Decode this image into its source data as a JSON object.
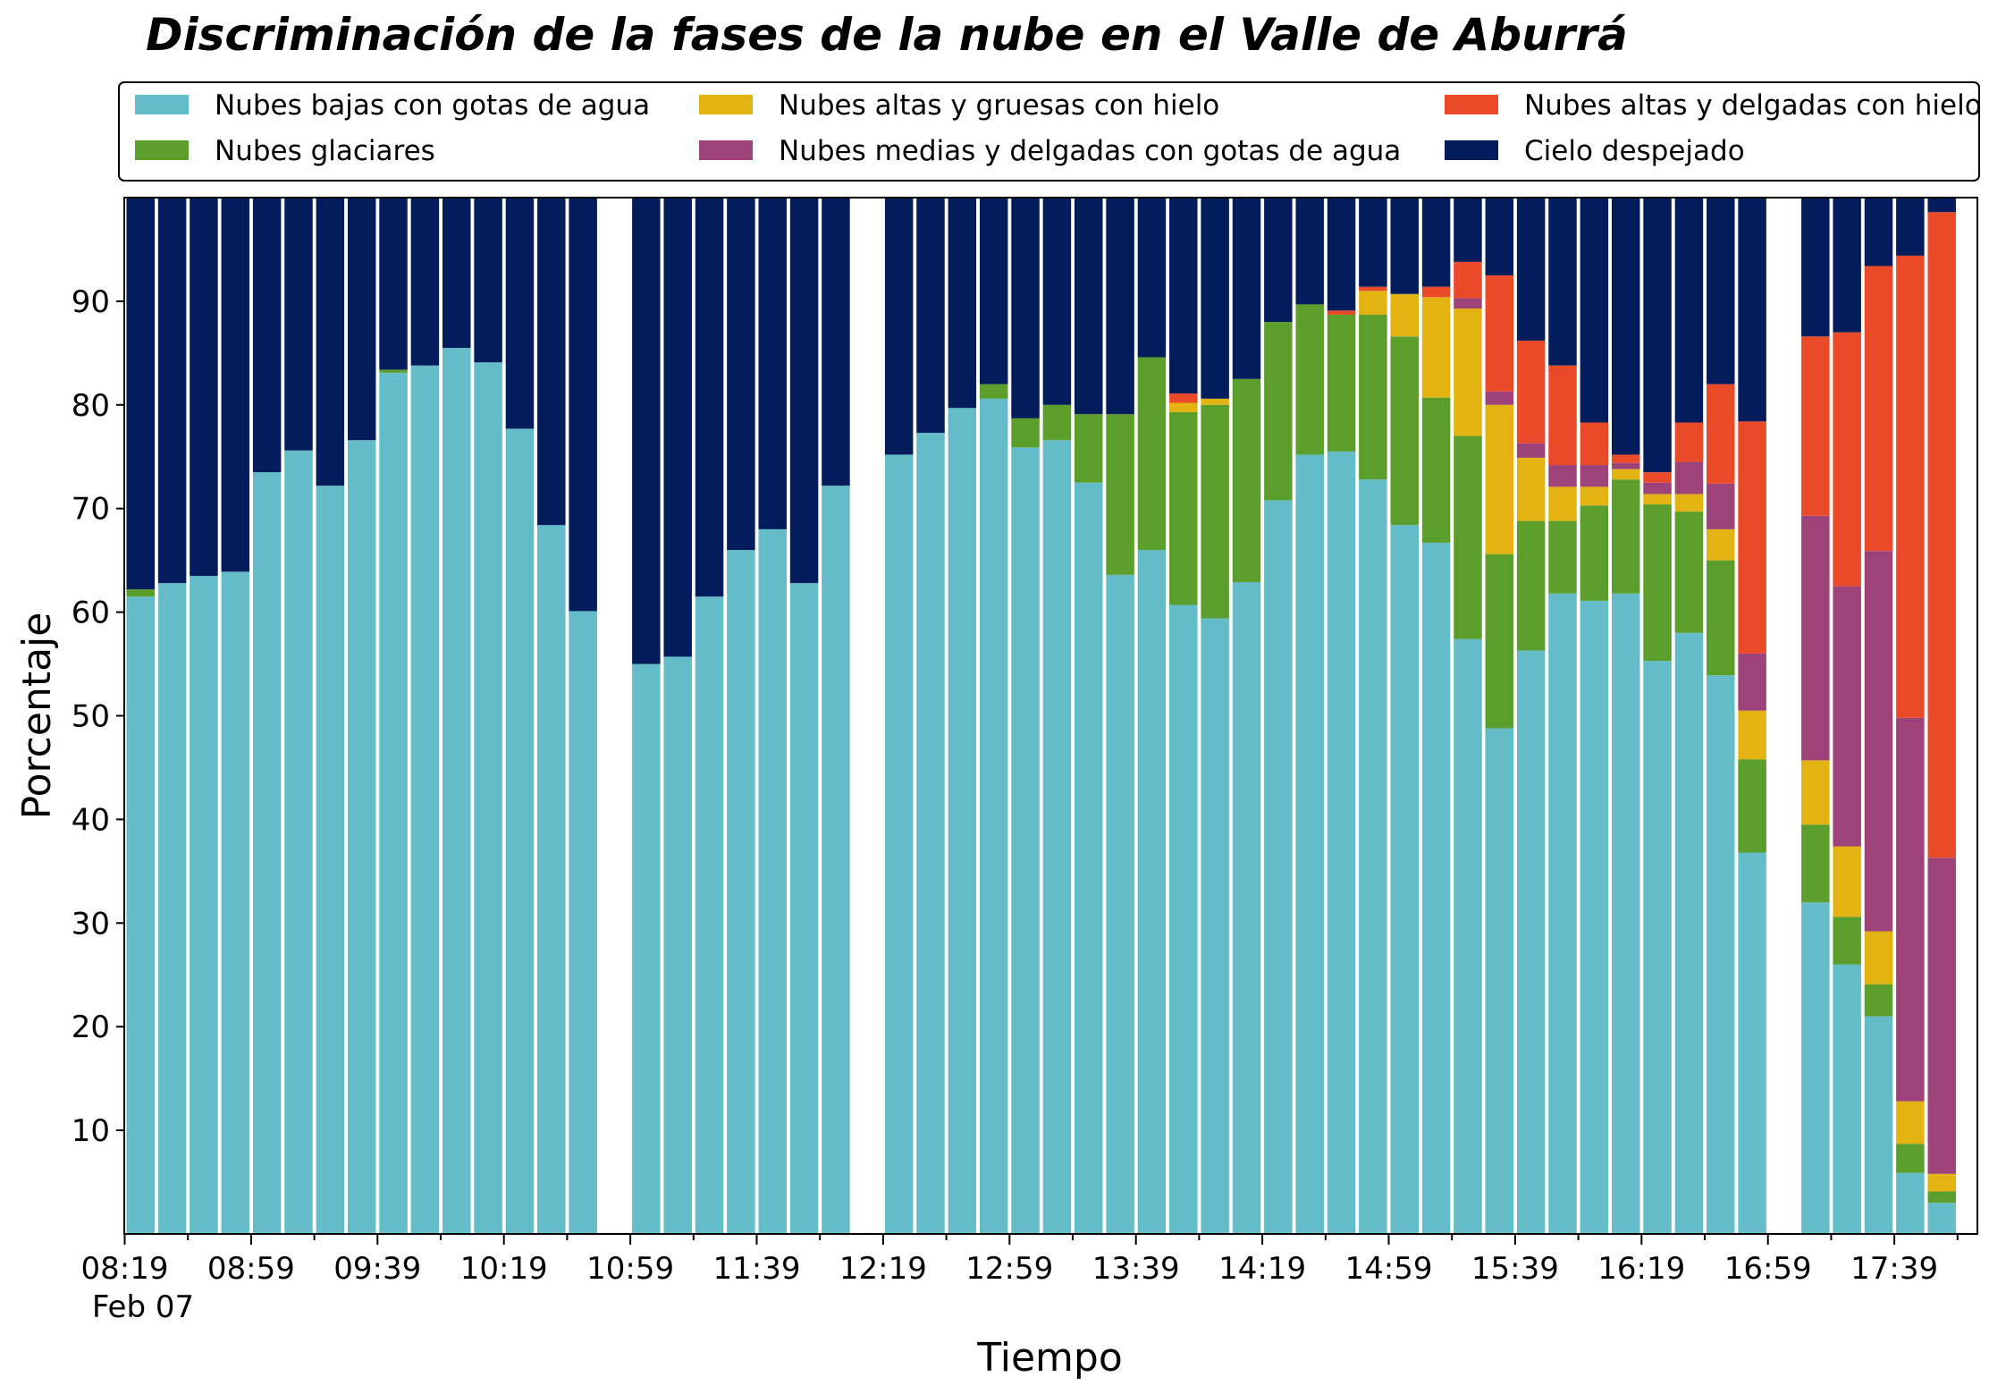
{
  "chart_data": {
    "type": "bar",
    "stacked": true,
    "title": "Discriminación de la fases de la nube en el Valle de Aburrá",
    "xlabel": "Tiempo",
    "ylabel": "Porcentaje",
    "ylim": [
      0,
      100
    ],
    "yticks": [
      10,
      20,
      30,
      40,
      50,
      60,
      70,
      80,
      90
    ],
    "xtick_labels": [
      "08:19",
      "08:59",
      "09:39",
      "10:19",
      "10:59",
      "11:39",
      "12:19",
      "12:59",
      "13:39",
      "14:19",
      "14:59",
      "15:39",
      "16:19",
      "16:59",
      "17:39"
    ],
    "xtick_sublabel": "Feb 07",
    "grid": false,
    "legend_position": "top",
    "categories": [
      "08:19",
      "08:29",
      "08:39",
      "08:49",
      "08:59",
      "09:09",
      "09:19",
      "09:29",
      "09:39",
      "09:49",
      "09:59",
      "10:09",
      "10:19",
      "10:29",
      "10:39",
      "10:49",
      "10:59",
      "11:09",
      "11:19",
      "11:29",
      "11:39",
      "11:49",
      "11:59",
      "12:09",
      "12:19",
      "12:29",
      "12:39",
      "12:49",
      "12:59",
      "13:09",
      "13:19",
      "13:29",
      "13:39",
      "13:49",
      "13:59",
      "14:09",
      "14:19",
      "14:29",
      "14:39",
      "14:49",
      "14:59",
      "15:09",
      "15:19",
      "15:29",
      "15:39",
      "15:49",
      "15:59",
      "16:09",
      "16:19",
      "16:29",
      "16:39",
      "16:49",
      "16:59",
      "17:09",
      "17:19",
      "17:29",
      "17:39",
      "17:49"
    ],
    "series": [
      {
        "name": "Nubes bajas con gotas de agua",
        "color": "#63BCC7",
        "values": [
          61.5,
          62.8,
          63.5,
          63.9,
          73.5,
          75.6,
          72.2,
          76.6,
          83.1,
          83.8,
          85.5,
          84.1,
          77.7,
          68.4,
          60.1,
          null,
          55.0,
          55.7,
          61.5,
          66.0,
          68.0,
          62.8,
          72.2,
          null,
          75.2,
          77.3,
          79.7,
          80.6,
          75.9,
          76.6,
          72.5,
          63.6,
          66.0,
          60.7,
          59.4,
          62.9,
          70.8,
          75.2,
          75.5,
          72.8,
          68.4,
          66.7,
          57.4,
          48.8,
          56.3,
          61.8,
          61.1,
          61.8,
          55.3,
          58.0,
          53.9,
          36.8,
          null,
          32.0,
          26.0,
          21.0,
          5.9,
          3.0
        ]
      },
      {
        "name": "Nubes glaciares",
        "color": "#5C9E2B",
        "values": [
          0.7,
          0,
          0,
          0,
          0,
          0,
          0,
          0,
          0.3,
          0,
          0,
          0,
          0,
          0,
          0,
          null,
          0,
          0,
          0,
          0,
          0,
          0,
          0,
          null,
          0,
          0,
          0,
          1.4,
          2.8,
          3.4,
          6.6,
          15.5,
          18.6,
          18.6,
          20.6,
          19.6,
          17.2,
          14.5,
          13.2,
          15.9,
          18.2,
          14.0,
          19.6,
          16.8,
          12.5,
          7.0,
          9.2,
          11.0,
          15.1,
          11.7,
          11.1,
          9.0,
          null,
          7.5,
          4.6,
          3.1,
          2.8,
          1.1
        ]
      },
      {
        "name": "Nubes altas y gruesas con hielo",
        "color": "#E3B312",
        "values": [
          0,
          0,
          0,
          0,
          0,
          0,
          0,
          0,
          0,
          0,
          0,
          0,
          0,
          0,
          0,
          null,
          0,
          0,
          0,
          0,
          0,
          0,
          0,
          null,
          0,
          0,
          0,
          0,
          0,
          0,
          0,
          0,
          0,
          0.9,
          0.6,
          0,
          0,
          0,
          0,
          2.3,
          4.1,
          9.7,
          12.3,
          14.4,
          6.1,
          3.3,
          1.8,
          1.0,
          1.0,
          1.7,
          3.0,
          4.7,
          null,
          6.2,
          6.8,
          5.1,
          4.1,
          1.7
        ]
      },
      {
        "name": "Nubes medias y delgadas con gotas de agua",
        "color": "#9E427A",
        "values": [
          0,
          0,
          0,
          0,
          0,
          0,
          0,
          0,
          0,
          0,
          0,
          0,
          0,
          0,
          0,
          null,
          0,
          0,
          0,
          0,
          0,
          0,
          0,
          null,
          0,
          0,
          0,
          0,
          0,
          0,
          0,
          0,
          0,
          0,
          0,
          0,
          0,
          0,
          0,
          0,
          0,
          0,
          1.0,
          1.3,
          1.4,
          2.1,
          2.1,
          0.6,
          1.1,
          3.1,
          4.4,
          5.5,
          null,
          23.6,
          25.1,
          36.7,
          37.0,
          30.5
        ]
      },
      {
        "name": "Nubes altas y delgadas con hielo",
        "color": "#EB4A29",
        "values": [
          0,
          0,
          0,
          0,
          0,
          0,
          0,
          0,
          0,
          0,
          0,
          0,
          0,
          0,
          0,
          null,
          0,
          0,
          0,
          0,
          0,
          0,
          0,
          null,
          0,
          0,
          0,
          0,
          0,
          0,
          0,
          0,
          0,
          0.9,
          0,
          0,
          0,
          0,
          0.4,
          0.4,
          0,
          1.0,
          3.5,
          11.2,
          9.9,
          9.6,
          4.1,
          0.8,
          1.0,
          3.8,
          9.6,
          22.4,
          null,
          17.3,
          24.5,
          27.5,
          44.6,
          62.3
        ]
      },
      {
        "name": "Cielo despejado",
        "color": "#031D5C",
        "values": [
          37.8,
          37.2,
          36.5,
          36.1,
          26.5,
          24.4,
          27.8,
          23.4,
          16.6,
          16.2,
          14.5,
          15.9,
          22.3,
          31.6,
          39.9,
          null,
          45.0,
          44.3,
          38.5,
          34.0,
          32.0,
          37.2,
          27.8,
          null,
          24.8,
          22.7,
          20.3,
          18.0,
          21.3,
          20.0,
          20.9,
          20.9,
          15.4,
          18.9,
          19.4,
          17.5,
          12.0,
          10.3,
          10.9,
          8.6,
          9.3,
          8.6,
          6.2,
          7.5,
          13.8,
          16.2,
          21.7,
          24.8,
          26.5,
          21.7,
          18.0,
          21.6,
          null,
          13.4,
          13.0,
          6.6,
          5.6,
          1.4
        ]
      }
    ]
  }
}
